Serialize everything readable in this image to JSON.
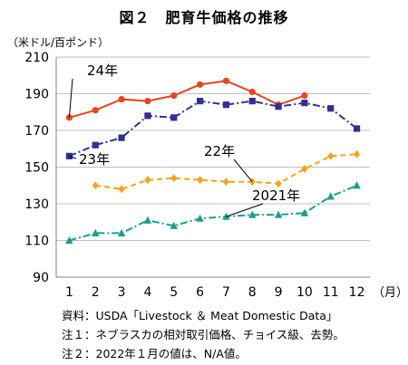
{
  "title": "図２　肥育牛価格の推移",
  "unit": "（米ドル/百ポンド）",
  "notes": [
    "資料：USDA「Livestock ＆ Meat Domestic Data」",
    "注１：ネブラスカの相対取引価格、チョイス級、去勢。",
    "注２：2022年１月の値は、N/A値。"
  ],
  "chart_data": {
    "type": "line",
    "x": [
      1,
      2,
      3,
      4,
      5,
      6,
      7,
      8,
      9,
      10,
      11,
      12
    ],
    "x_tick_labels": [
      "1",
      "2",
      "3",
      "4",
      "5",
      "6",
      "7",
      "8",
      "9",
      "10",
      "11",
      "12"
    ],
    "x_unit": "（月）",
    "ylim": [
      90,
      210
    ],
    "y_ticks": [
      90,
      110,
      130,
      150,
      170,
      190,
      210
    ],
    "grid": true,
    "series": [
      {
        "name": "24年",
        "color": "#e8451e",
        "dash": "solid",
        "marker": "circle",
        "values": [
          177,
          181,
          187,
          186,
          189,
          195,
          197,
          191,
          184,
          189,
          null,
          null
        ]
      },
      {
        "name": "23年",
        "color": "#2e3192",
        "dash": "dashdot",
        "marker": "square",
        "values": [
          156,
          162,
          166,
          178,
          177,
          186,
          184,
          186,
          183,
          185,
          182,
          171
        ]
      },
      {
        "name": "22年",
        "color": "#f7a21b",
        "dash": "dashed",
        "marker": "diamond",
        "values": [
          null,
          140,
          138,
          143,
          144,
          143,
          142,
          142,
          141,
          149,
          156,
          157
        ]
      },
      {
        "name": "2021年",
        "color": "#1a9e8f",
        "dash": "dashdot",
        "marker": "triangle",
        "values": [
          110,
          114,
          114,
          121,
          118,
          122,
          123,
          124,
          124,
          125,
          134,
          140
        ]
      }
    ],
    "labels": [
      {
        "text": "24年",
        "series": 0
      },
      {
        "text": "23年",
        "series": 1
      },
      {
        "text": "22年",
        "series": 2
      },
      {
        "text": "2021年",
        "series": 3
      }
    ]
  }
}
